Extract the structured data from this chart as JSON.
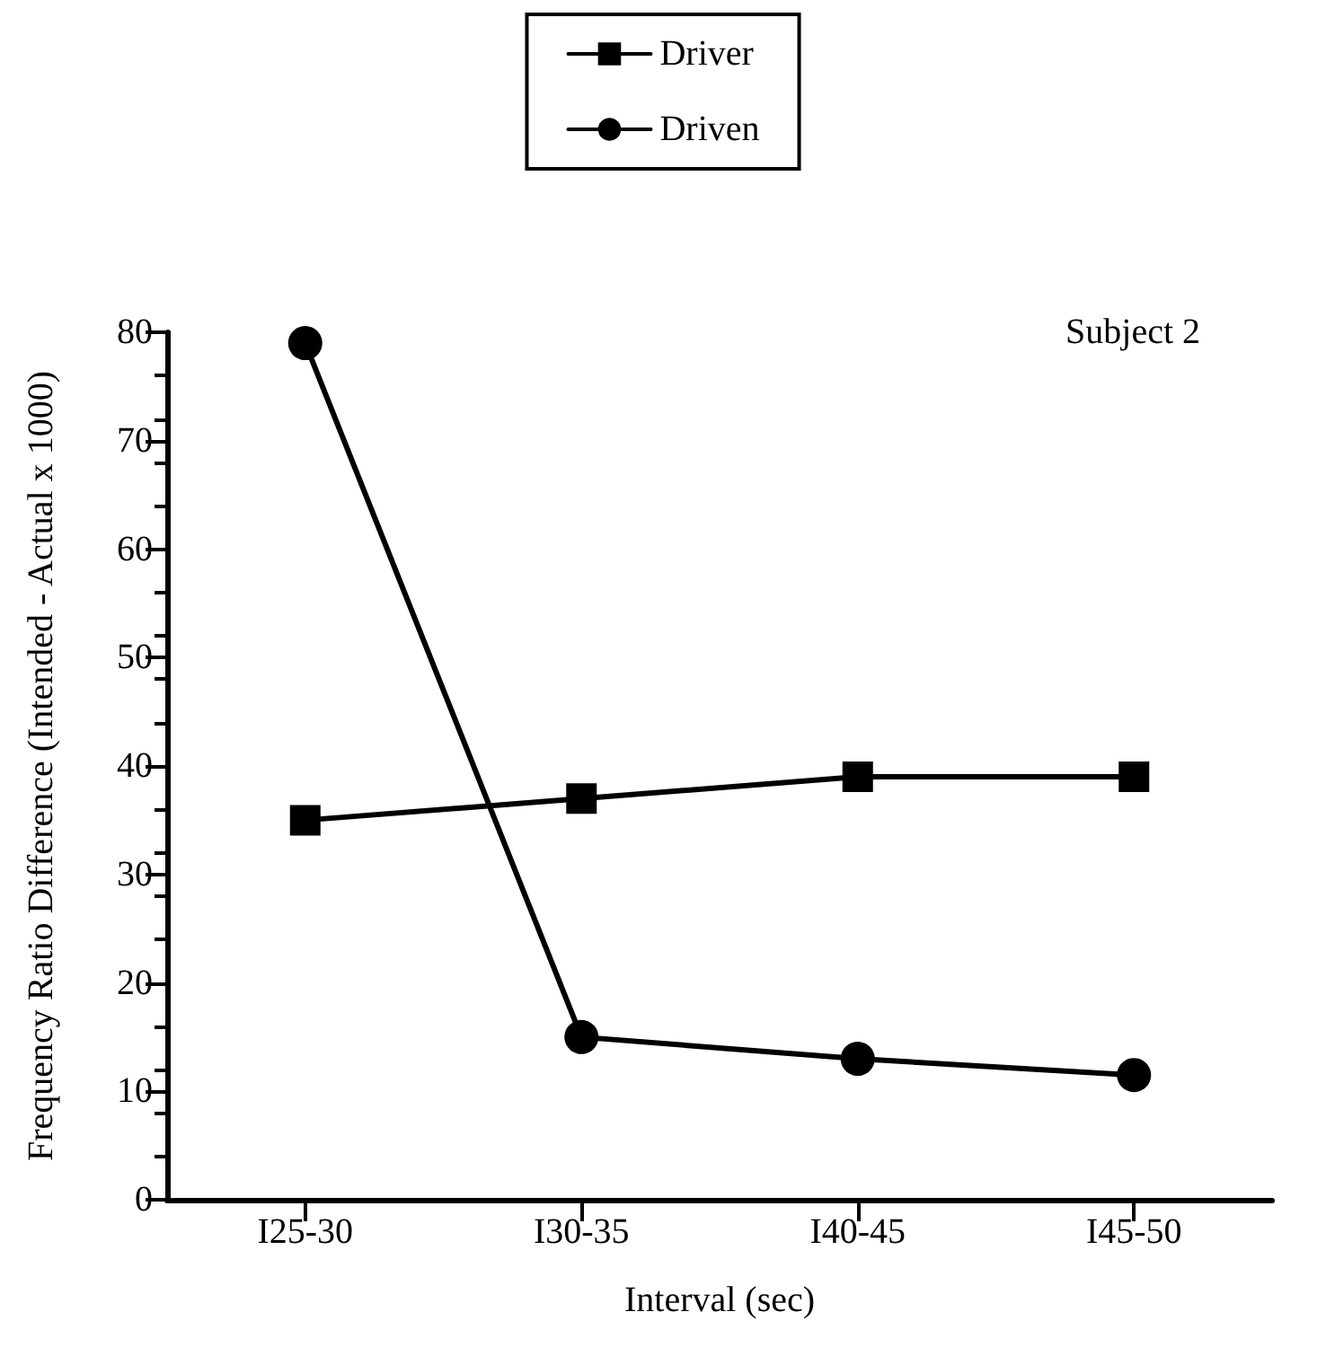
{
  "chart_data": {
    "type": "line",
    "xlabel": "Interval (sec)",
    "ylabel": "Frequency Ratio Difference (Intended - Actual x 1000)",
    "categories": [
      "I25-30",
      "I30-35",
      "I40-45",
      "I45-50"
    ],
    "series": [
      {
        "name": "Driver",
        "color": "#000000",
        "marker": "square",
        "values": [
          35,
          37,
          39,
          39
        ]
      },
      {
        "name": "Driven",
        "color": "#000000",
        "marker": "circle",
        "values": [
          79,
          15,
          13,
          11.5
        ]
      }
    ],
    "ylim": [
      0,
      80
    ],
    "yticks": [
      0,
      10,
      20,
      30,
      40,
      50,
      60,
      70,
      80
    ],
    "grid": false,
    "legend": "top",
    "line_style": "solid",
    "annotations": [
      "Subject 2"
    ]
  }
}
